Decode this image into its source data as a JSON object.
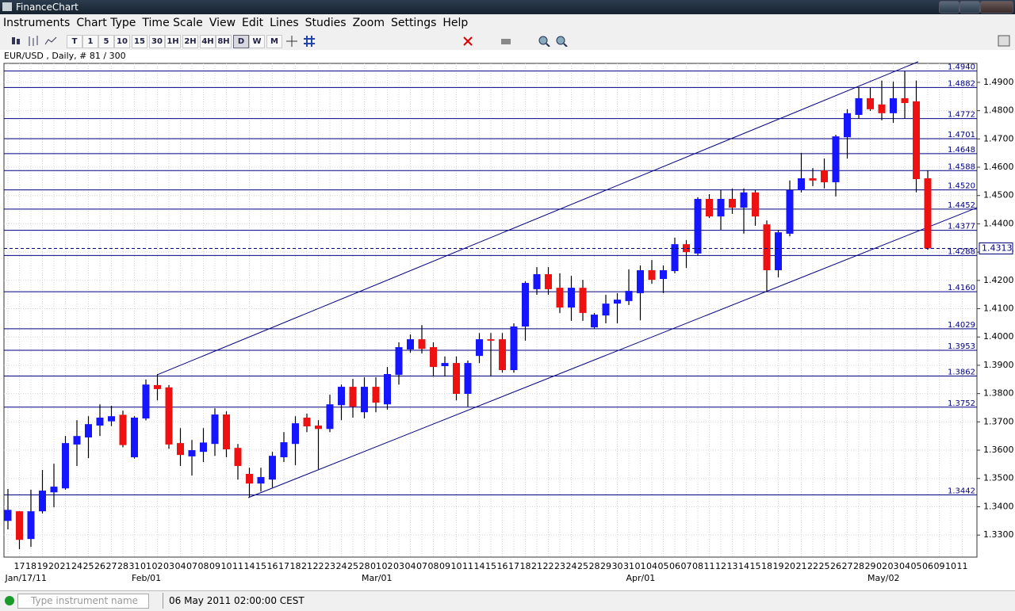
{
  "window": {
    "title": "FinanceChart"
  },
  "menu": [
    "Instruments",
    "Chart Type",
    "Time Scale",
    "View",
    "Edit",
    "Lines",
    "Studies",
    "Zoom",
    "Settings",
    "Help"
  ],
  "toolbar": [
    "T",
    "1",
    "5",
    "10",
    "15",
    "30",
    "1H",
    "2H",
    "4H",
    "8H",
    "D",
    "W",
    "M"
  ],
  "chart_data": {
    "type": "candlestick",
    "title": "EUR/USD , Daily, # 81 / 300",
    "categories": [
      null,
      "17",
      "18",
      "19",
      "20",
      "21",
      "24",
      "25",
      "26",
      "27",
      "28",
      "31",
      "01",
      "02",
      "03",
      "04",
      "07",
      "08",
      "09",
      "10",
      "11",
      "14",
      "15",
      "16",
      "17",
      "18",
      "21",
      "22",
      "23",
      "24",
      "25",
      "28",
      "01",
      "02",
      "03",
      "04",
      "07",
      "08",
      "09",
      "10",
      "11",
      "14",
      "15",
      "16",
      "17",
      "18",
      "21",
      "22",
      "23",
      "24",
      "25",
      "28",
      "29",
      "30",
      "31",
      "01",
      "04",
      "05",
      "06",
      "07",
      "08",
      "11",
      "12",
      "13",
      "14",
      "15",
      "18",
      "19",
      "20",
      "21",
      "22",
      "25",
      "26",
      "27",
      "28",
      "29",
      "02",
      "03",
      "04",
      "05",
      "06",
      "09",
      "10",
      "11"
    ],
    "x_group_labels": [
      "Jan/17/11",
      "Feb/01",
      "Mar/01",
      "Apr/01",
      "May/02"
    ],
    "open": [
      1.335,
      1.3384,
      1.3286,
      1.3384,
      1.3451,
      1.3465,
      1.362,
      1.3645,
      1.3687,
      1.3702,
      1.3725,
      1.3575,
      1.3712,
      1.383,
      1.3822,
      1.3625,
      1.3578,
      1.3594,
      1.3622,
      1.3726,
      1.3608,
      1.3516,
      1.3482,
      1.3496,
      1.3575,
      1.3622,
      1.3715,
      1.3687,
      1.3675,
      1.3759,
      1.3824,
      1.3734,
      1.3824,
      1.3762,
      1.3866,
      1.3956,
      1.3992,
      1.3964,
      1.3897,
      1.3908,
      1.3799,
      1.3933,
      1.3992,
      1.3992,
      1.3883,
      1.4037,
      1.4169,
      1.4222,
      1.4174,
      1.4104,
      1.4174,
      1.4034,
      1.4076,
      1.4118,
      1.4127,
      1.4155,
      1.4236,
      1.4205,
      1.4233,
      1.4328,
      1.4295,
      1.4488,
      1.4426,
      1.4488,
      1.4457,
      1.4511,
      1.4398,
      1.4236,
      1.4365,
      1.4519,
      1.4561,
      1.4589,
      1.4547,
      1.4706,
      1.4785,
      1.4844,
      1.4822,
      1.4791,
      1.4844,
      1.4833,
      1.4561,
      null,
      null,
      null
    ],
    "high": [
      1.3463,
      1.3384,
      1.346,
      1.353,
      1.3552,
      1.365,
      1.3706,
      1.372,
      1.3762,
      1.3757,
      1.374,
      1.372,
      1.385,
      1.3869,
      1.383,
      1.3678,
      1.3636,
      1.3678,
      1.3748,
      1.3737,
      1.3622,
      1.3538,
      1.3538,
      1.3594,
      1.3664,
      1.372,
      1.3729,
      1.3706,
      1.3796,
      1.3832,
      1.3852,
      1.3858,
      1.3858,
      1.3894,
      1.3981,
      1.4009,
      1.4042,
      1.3981,
      1.3931,
      1.3931,
      1.3917,
      1.4014,
      1.4014,
      1.4014,
      1.4048,
      1.4197,
      1.4247,
      1.4247,
      1.4225,
      1.4216,
      1.4202,
      1.4085,
      1.4149,
      1.4155,
      1.4239,
      1.4253,
      1.4272,
      1.4253,
      1.4351,
      1.4342,
      1.4494,
      1.4505,
      1.4519,
      1.4525,
      1.4525,
      1.4519,
      1.4412,
      1.4379,
      1.4553,
      1.4651,
      1.4597,
      1.4631,
      1.4715,
      1.4805,
      1.4883,
      1.4883,
      1.4906,
      1.4903,
      1.4939,
      1.4906,
      1.4589,
      null,
      null,
      null
    ],
    "low": [
      1.332,
      1.325,
      1.3258,
      1.3376,
      1.3398,
      1.346,
      1.3544,
      1.3572,
      1.365,
      1.3685,
      1.361,
      1.357,
      1.3705,
      1.3776,
      1.3605,
      1.3544,
      1.351,
      1.3558,
      1.358,
      1.3575,
      1.3496,
      1.3435,
      1.3454,
      1.3468,
      1.3558,
      1.3547,
      1.3664,
      1.3533,
      1.3664,
      1.3706,
      1.3715,
      1.3712,
      1.3734,
      1.3743,
      1.3832,
      1.3944,
      1.3942,
      1.386,
      1.386,
      1.3776,
      1.3754,
      1.3908,
      1.386,
      1.3874,
      1.3874,
      1.3987,
      1.4149,
      1.4149,
      1.4085,
      1.4057,
      1.4057,
      1.4029,
      1.4048,
      1.4048,
      1.4113,
      1.4059,
      1.4188,
      1.4155,
      1.4225,
      1.4244,
      1.4289,
      1.4421,
      1.4379,
      1.4435,
      1.4365,
      1.4393,
      1.416,
      1.4211,
      1.4356,
      1.4511,
      1.4533,
      1.4525,
      1.4497,
      1.4631,
      1.4771,
      1.4799,
      1.4766,
      1.4757,
      1.4771,
      1.4511,
      1.4308,
      null,
      null,
      null
    ],
    "close": [
      1.3389,
      1.3283,
      1.3384,
      1.3457,
      1.3471,
      1.3625,
      1.365,
      1.3692,
      1.3715,
      1.372,
      1.3618,
      1.3715,
      1.3832,
      1.3816,
      1.362,
      1.3583,
      1.36,
      1.3627,
      1.3726,
      1.3603,
      1.3544,
      1.3482,
      1.3505,
      1.358,
      1.3628,
      1.3695,
      1.3684,
      1.3675,
      1.3762,
      1.3824,
      1.3754,
      1.3824,
      1.3768,
      1.3869,
      1.3964,
      1.3992,
      1.3958,
      1.3894,
      1.3908,
      1.3799,
      1.3908,
      1.3992,
      1.3987,
      1.3883,
      1.4037,
      1.4191,
      1.4222,
      1.4169,
      1.4104,
      1.4174,
      1.4085,
      1.4079,
      1.4118,
      1.4132,
      1.4163,
      1.4236,
      1.4202,
      1.4236,
      1.4328,
      1.43,
      1.4488,
      1.4426,
      1.4488,
      1.4457,
      1.4511,
      1.4426,
      1.4236,
      1.437,
      1.4519,
      1.4561,
      1.4553,
      1.4547,
      1.4709,
      1.4791,
      1.4844,
      1.4805,
      1.4791,
      1.4844,
      1.4827,
      1.4558,
      1.4313,
      null,
      null,
      null
    ],
    "up_color": "#1515ff",
    "down_color": "#ee1111",
    "line_color": "#000080",
    "ylim": [
      1.3222,
      1.4967
    ],
    "yticks": [
      {
        "value": 1.49,
        "label": "1.4900"
      },
      {
        "value": 1.48,
        "label": "1.4800"
      },
      {
        "value": 1.47,
        "label": "1.4700"
      },
      {
        "value": 1.46,
        "label": "1.4600"
      },
      {
        "value": 1.45,
        "label": "1.4500"
      },
      {
        "value": 1.44,
        "label": "1.4400"
      },
      {
        "value": 1.43,
        "label": "1.4300"
      },
      {
        "value": 1.42,
        "label": "1.4200"
      },
      {
        "value": 1.41,
        "label": "1.4100"
      },
      {
        "value": 1.4,
        "label": "1.4000"
      },
      {
        "value": 1.39,
        "label": "1.3900"
      },
      {
        "value": 1.38,
        "label": "1.3800"
      },
      {
        "value": 1.37,
        "label": "1.3700"
      },
      {
        "value": 1.36,
        "label": "1.3600"
      },
      {
        "value": 1.35,
        "label": "1.3500"
      },
      {
        "value": 1.34,
        "label": "1.3400"
      },
      {
        "value": 1.33,
        "label": "1.3300"
      }
    ],
    "grid": true,
    "levels": [
      {
        "value": 1.494,
        "label": "1.4940"
      },
      {
        "value": 1.4882,
        "label": "1.4882"
      },
      {
        "value": 1.4772,
        "label": "1.4772"
      },
      {
        "value": 1.4701,
        "label": "1.4701"
      },
      {
        "value": 1.4648,
        "label": "1.4648"
      },
      {
        "value": 1.4588,
        "label": "1.4588"
      },
      {
        "value": 1.452,
        "label": "1.4520"
      },
      {
        "value": 1.4452,
        "label": "1.4452"
      },
      {
        "value": 1.4377,
        "label": "1.4377"
      },
      {
        "value": 1.4288,
        "label": "1.4288"
      },
      {
        "value": 1.416,
        "label": "1.4160"
      },
      {
        "value": 1.4029,
        "label": "1.4029"
      },
      {
        "value": 1.3953,
        "label": "1.3953"
      },
      {
        "value": 1.3862,
        "label": "1.3862"
      },
      {
        "value": 1.3752,
        "label": "1.3752"
      },
      {
        "value": 1.3442,
        "label": "1.3442"
      }
    ],
    "current": {
      "value": 1.4313,
      "label": "1.4313"
    },
    "trend_lines": [
      {
        "values": [
          1.3866,
          1.4973
        ]
      },
      {
        "values": [
          1.3432,
          1.4457
        ]
      }
    ]
  },
  "status": {
    "search_placeholder": "Type instrument name",
    "datetime": "06 May 2011 02:00:00 CEST"
  }
}
